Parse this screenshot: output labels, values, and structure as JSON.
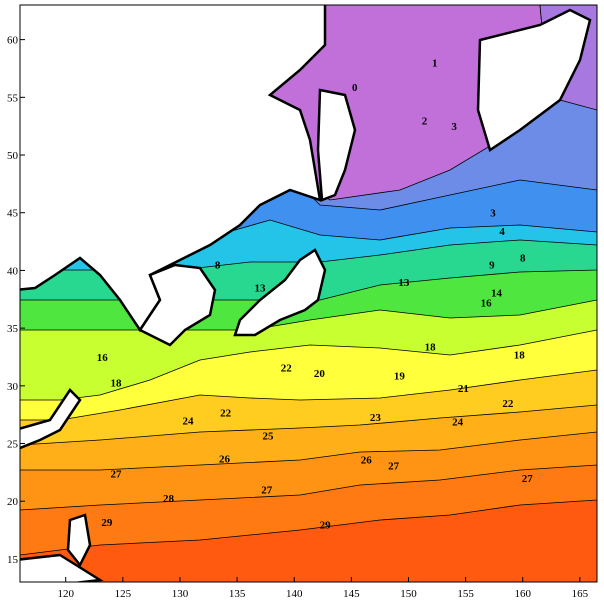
{
  "chart_data": {
    "type": "contour",
    "xlim": [
      116,
      166.5
    ],
    "ylim": [
      13,
      63
    ],
    "xticks": [
      120,
      125,
      130,
      135,
      140,
      145,
      150,
      155,
      160,
      165
    ],
    "yticks": [
      15,
      20,
      25,
      30,
      35,
      40,
      45,
      50,
      55,
      60
    ],
    "contour_labels": [
      {
        "x": 152.3,
        "y": 58.0,
        "value": 1
      },
      {
        "x": 145.3,
        "y": 55.9,
        "value": 0
      },
      {
        "x": 151.4,
        "y": 53.0,
        "value": 2
      },
      {
        "x": 154.0,
        "y": 52.5,
        "value": 3
      },
      {
        "x": 157.4,
        "y": 45.0,
        "value": 3
      },
      {
        "x": 158.2,
        "y": 43.4,
        "value": 4
      },
      {
        "x": 160.0,
        "y": 41.1,
        "value": 8
      },
      {
        "x": 157.3,
        "y": 40.5,
        "value": 9
      },
      {
        "x": 133.3,
        "y": 40.5,
        "value": 8
      },
      {
        "x": 137.0,
        "y": 38.5,
        "value": 13
      },
      {
        "x": 149.6,
        "y": 39.0,
        "value": 13
      },
      {
        "x": 156.8,
        "y": 37.2,
        "value": 16
      },
      {
        "x": 157.7,
        "y": 38.1,
        "value": 14
      },
      {
        "x": 151.9,
        "y": 33.4,
        "value": 18
      },
      {
        "x": 159.7,
        "y": 32.7,
        "value": 18
      },
      {
        "x": 142.2,
        "y": 31.1,
        "value": 20
      },
      {
        "x": 149.2,
        "y": 30.9,
        "value": 19
      },
      {
        "x": 154.8,
        "y": 29.8,
        "value": 21
      },
      {
        "x": 139.3,
        "y": 31.6,
        "value": 22
      },
      {
        "x": 158.7,
        "y": 28.5,
        "value": 22
      },
      {
        "x": 147.1,
        "y": 27.3,
        "value": 23
      },
      {
        "x": 154.3,
        "y": 26.9,
        "value": 24
      },
      {
        "x": 134.0,
        "y": 27.7,
        "value": 22
      },
      {
        "x": 137.7,
        "y": 25.7,
        "value": 25
      },
      {
        "x": 133.9,
        "y": 23.7,
        "value": 26
      },
      {
        "x": 146.3,
        "y": 23.6,
        "value": 26
      },
      {
        "x": 148.7,
        "y": 23.1,
        "value": 27
      },
      {
        "x": 124.4,
        "y": 22.4,
        "value": 27
      },
      {
        "x": 137.6,
        "y": 21.0,
        "value": 27
      },
      {
        "x": 129.0,
        "y": 20.3,
        "value": 28
      },
      {
        "x": 123.6,
        "y": 18.2,
        "value": 29
      },
      {
        "x": 142.7,
        "y": 18.0,
        "value": 29
      },
      {
        "x": 160.4,
        "y": 22.0,
        "value": 27
      },
      {
        "x": 130.7,
        "y": 27.0,
        "value": 24
      },
      {
        "x": 123.2,
        "y": 32.5,
        "value": 16
      },
      {
        "x": 124.4,
        "y": 30.3,
        "value": 18
      }
    ]
  }
}
